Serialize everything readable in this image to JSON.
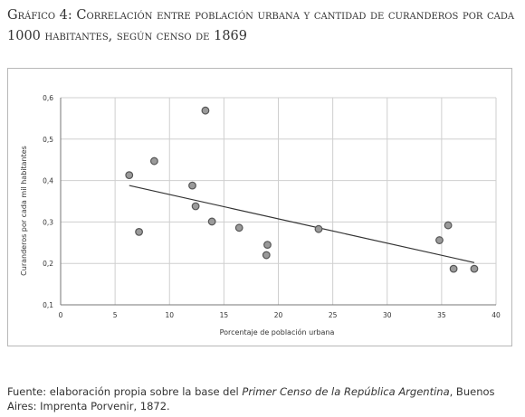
{
  "title": "Gráfico 4: Correlación entre población urbana y cantidad de curanderos por cada 1000 habitantes, según censo de 1869",
  "source": {
    "prefix": "Fuente: elaboración propia sobre la base del ",
    "work": "Primer Censo de la República Argentina",
    "suffix": ", Buenos Aires: Imprenta Porvenir, 1872."
  },
  "chart_data": {
    "type": "scatter",
    "title": "Gráfico 4: Correlación entre población urbana y cantidad de curanderos por cada 1000 habitantes, según censo de 1869",
    "xlabel": "Porcentaje de población urbana",
    "ylabel": "Curanderos por cada mil habitantes",
    "xlim": [
      0,
      40
    ],
    "ylim": [
      0.1,
      0.6
    ],
    "xticks": [
      0,
      5,
      10,
      15,
      20,
      25,
      30,
      35,
      40
    ],
    "yticks": [
      0.1,
      0.2,
      0.3,
      0.4,
      0.5,
      0.6
    ],
    "xtick_labels": [
      "0",
      "5",
      "10",
      "15",
      "20",
      "25",
      "30",
      "35",
      "40"
    ],
    "ytick_labels": [
      "0,1",
      "0,2",
      "0,3",
      "0,4",
      "0,5",
      "0,6"
    ],
    "grid": true,
    "points": [
      {
        "x": 6.3,
        "y": 0.413
      },
      {
        "x": 7.2,
        "y": 0.276
      },
      {
        "x": 8.6,
        "y": 0.447
      },
      {
        "x": 12.1,
        "y": 0.388
      },
      {
        "x": 12.4,
        "y": 0.338
      },
      {
        "x": 13.3,
        "y": 0.569
      },
      {
        "x": 13.9,
        "y": 0.301
      },
      {
        "x": 16.4,
        "y": 0.286
      },
      {
        "x": 18.9,
        "y": 0.22
      },
      {
        "x": 19.0,
        "y": 0.245
      },
      {
        "x": 23.7,
        "y": 0.283
      },
      {
        "x": 34.8,
        "y": 0.256
      },
      {
        "x": 35.6,
        "y": 0.292
      },
      {
        "x": 36.1,
        "y": 0.187
      },
      {
        "x": 38.0,
        "y": 0.187
      }
    ],
    "trendline": {
      "x": [
        6.3,
        38.0
      ],
      "y": [
        0.388,
        0.202
      ]
    },
    "colors": {
      "point_fill": "#9a9a9a",
      "point_stroke": "#555555",
      "trendline": "#333333",
      "grid": "#cfcfcf"
    }
  }
}
